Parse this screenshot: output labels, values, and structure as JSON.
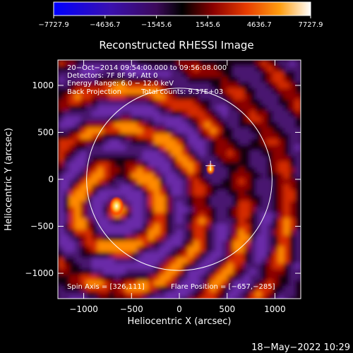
{
  "colorbar": {
    "ticks": [
      "-7727.9",
      "-4636.7",
      "-1545.6",
      "1545.6",
      "4636.7",
      "7727.9"
    ],
    "range": [
      -7727.9,
      7727.9
    ],
    "colormap": [
      "#0000ff",
      "#4b0082",
      "#000000",
      "#7a0000",
      "#e03a00",
      "#ff9a00",
      "#ffff80",
      "#ffffff"
    ]
  },
  "chart_data": {
    "type": "heatmap",
    "title": "Reconstructed RHESSI Image",
    "xlabel": "Heliocentric X (arcsec)",
    "ylabel": "Heliocentric Y (arcsec)",
    "xlim": [
      -1270,
      1270
    ],
    "ylim": [
      -1270,
      1270
    ],
    "xticks": [
      -1000,
      -500,
      0,
      500,
      1000
    ],
    "yticks": [
      -1000,
      -500,
      0,
      500,
      1000
    ],
    "xtick_labels": [
      "−1000",
      "−500",
      "0",
      "500",
      "1000"
    ],
    "ytick_labels": [
      "−1000",
      "−500",
      "0",
      "500",
      "1000"
    ],
    "solar_disk_radius": 970,
    "sources": [
      {
        "x": -657,
        "y": -285,
        "value": 7727.9
      },
      {
        "x": 326,
        "y": 111,
        "value": 3500
      }
    ],
    "crosshair": {
      "x": 326,
      "y": 145
    },
    "info_lines": [
      "20−Oct−2014 09:54:00.000 to 09:56:08.000",
      "Detectors: 7F 8F 9F, Att 0",
      "Energy Range: 6.0 − 12.0 keV"
    ],
    "method": "Back Projection",
    "total_counts": "Total counts: 9.37E+03",
    "spin_axis": "Spin Axis = [326,111]",
    "flare_position": "Flare Position = [−657,−285]"
  },
  "timestamp": "18−May−2022 10:29"
}
